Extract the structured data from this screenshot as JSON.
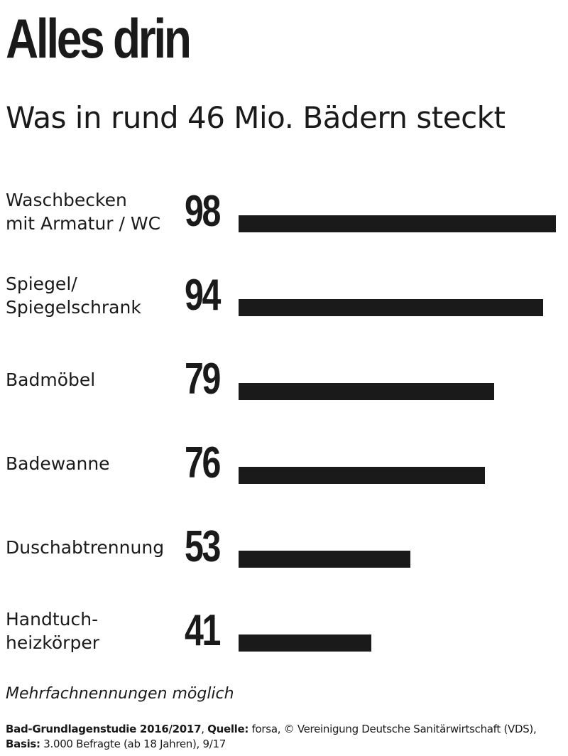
{
  "title": "Alles drin",
  "subtitle": "Was in rund 46 Mio. Bädern steckt",
  "chart_data": {
    "type": "bar",
    "orientation": "horizontal",
    "title": "Alles drin",
    "subtitle": "Was in rund 46 Mio. Bädern steckt",
    "categories": [
      "Waschbecken\nmit Armatur / WC",
      "Spiegel/\nSpiegelschrank",
      "Badmöbel",
      "Badewanne",
      "Duschabtrennung",
      "Handtuch-\nheizkörper"
    ],
    "values": [
      98,
      94,
      79,
      76,
      53,
      41
    ],
    "value_labels_shown": true,
    "xlim": [
      0,
      100
    ],
    "grid": false,
    "axes_shown": false,
    "bar_color": "#1a1a1a"
  },
  "note": "Mehrfachnennungen möglich",
  "source": {
    "study_label": "Bad-Grundlagenstudie 2016/2017",
    "source_label": "Quelle:",
    "source_text": "forsa, © Vereinigung Deutsche Sanitärwirtschaft (VDS),",
    "basis_label": "Basis:",
    "basis_text": "3.000 Befragte (ab 18 Jahren), 9/17"
  }
}
